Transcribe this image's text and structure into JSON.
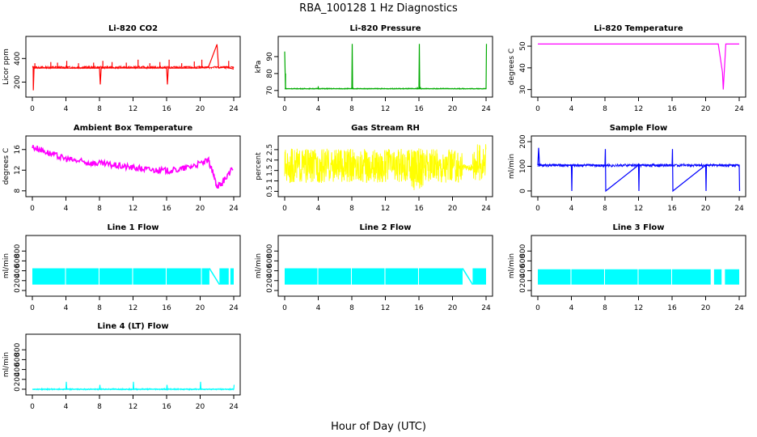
{
  "figure": {
    "title": "RBA_100128  1 Hz Diagnostics",
    "xlabel": "Hour of Day (UTC)"
  },
  "chart_data": [
    {
      "id": "co2",
      "type": "line",
      "title": "Li-820 CO2",
      "ylabel": "Licor ppm",
      "color": "#ff0000",
      "xlim": [
        0,
        24
      ],
      "xticks": [
        0,
        4,
        8,
        12,
        16,
        20,
        24
      ],
      "ylim": [
        100,
        560
      ],
      "yticks": [
        200,
        400
      ],
      "style": "trace",
      "x": [
        0,
        0.1,
        0.12,
        0.2,
        2,
        4,
        6,
        8,
        8.1,
        8.2,
        10,
        12,
        14,
        16,
        16.1,
        16.2,
        18,
        20,
        21,
        22,
        22.2,
        23,
        24
      ],
      "y": [
        330,
        330,
        130,
        320,
        320,
        318,
        318,
        320,
        180,
        320,
        320,
        320,
        320,
        320,
        180,
        320,
        318,
        320,
        330,
        520,
        320,
        330,
        310
      ],
      "band": {
        "x": [
          0,
          24
        ],
        "lo": 315,
        "hi": 335
      },
      "spikes": [
        {
          "x": 0.3,
          "y": 360
        },
        {
          "x": 2.2,
          "y": 370
        },
        {
          "x": 3.0,
          "y": 365
        },
        {
          "x": 4.1,
          "y": 380
        },
        {
          "x": 5.5,
          "y": 360
        },
        {
          "x": 7.3,
          "y": 365
        },
        {
          "x": 8.4,
          "y": 380
        },
        {
          "x": 9.5,
          "y": 370
        },
        {
          "x": 11.2,
          "y": 365
        },
        {
          "x": 12.6,
          "y": 390
        },
        {
          "x": 14.0,
          "y": 360
        },
        {
          "x": 15.2,
          "y": 370
        },
        {
          "x": 16.3,
          "y": 390
        },
        {
          "x": 17.8,
          "y": 360
        },
        {
          "x": 19.3,
          "y": 375
        },
        {
          "x": 20.2,
          "y": 390
        },
        {
          "x": 23.4,
          "y": 380
        }
      ]
    },
    {
      "id": "pressure",
      "type": "line",
      "title": "Li-820 Pressure",
      "ylabel": "kPa",
      "color": "#00aa00",
      "xlim": [
        0,
        24
      ],
      "xticks": [
        0,
        4,
        8,
        12,
        16,
        20,
        24
      ],
      "ylim": [
        68,
        100
      ],
      "yticks": [
        70,
        80,
        90
      ],
      "style": "trace",
      "x": [
        0,
        0.05,
        0.1,
        0.2,
        4,
        8,
        8.05,
        8.1,
        12,
        16,
        16.05,
        16.1,
        20,
        24,
        24.05
      ],
      "y": [
        93,
        82,
        71.5,
        71,
        71,
        71,
        97.5,
        71,
        71,
        71,
        97.5,
        71,
        71,
        71,
        97.5
      ],
      "band": {
        "x": [
          0,
          24
        ],
        "lo": 70.8,
        "hi": 71.4
      },
      "spikes": [
        {
          "x": 0.1,
          "y": 80
        },
        {
          "x": 4.0,
          "y": 72.5
        },
        {
          "x": 15.8,
          "y": 72
        },
        {
          "x": 16.2,
          "y": 72
        }
      ]
    },
    {
      "id": "licor_temp",
      "type": "line",
      "title": "Li-820 Temperature",
      "ylabel": "degrees C",
      "color": "#ff00ff",
      "xlim": [
        0,
        24
      ],
      "xticks": [
        0,
        4,
        8,
        12,
        16,
        20,
        24
      ],
      "ylim": [
        28,
        53
      ],
      "yticks": [
        30,
        40,
        50
      ],
      "style": "trace",
      "x": [
        0,
        4,
        8,
        12,
        16,
        21.5,
        22.0,
        22.1,
        22.3,
        22.4,
        23,
        24
      ],
      "y": [
        51,
        51,
        51,
        51,
        51,
        51,
        38,
        30,
        44,
        51,
        51,
        51
      ],
      "band": null,
      "spikes": []
    },
    {
      "id": "ambient_temp",
      "type": "line",
      "title": "Ambient Box Temperature",
      "ylabel": "degrees C",
      "color": "#ff00ff",
      "xlim": [
        0,
        24
      ],
      "xticks": [
        0,
        4,
        8,
        12,
        16,
        20,
        24
      ],
      "ylim": [
        7.5,
        18
      ],
      "yticks": [
        8,
        12,
        16
      ],
      "style": "thickband",
      "x": [
        0,
        1,
        2,
        3,
        4,
        5,
        6,
        7,
        8,
        9,
        10,
        11,
        12,
        13,
        14,
        15,
        16,
        17,
        18,
        19,
        20,
        21,
        21.5,
        22,
        22.5,
        23,
        24
      ],
      "y": [
        16.5,
        16.0,
        15.3,
        14.7,
        14.2,
        13.9,
        13.6,
        13.4,
        13.3,
        13.1,
        12.9,
        12.7,
        12.5,
        12.3,
        12.1,
        12.0,
        11.9,
        12.0,
        12.3,
        12.8,
        13.3,
        13.8,
        11.5,
        9.0,
        9.2,
        10.5,
        12.5
      ],
      "halfwidth": 0.6,
      "band": null,
      "spikes": []
    },
    {
      "id": "rh",
      "type": "line",
      "title": "Gas Stream RH",
      "ylabel": "percent",
      "color": "#ffff00",
      "xlim": [
        0,
        24
      ],
      "xticks": [
        0,
        4,
        8,
        12,
        16,
        20,
        24
      ],
      "ylim": [
        0.4,
        3.0
      ],
      "yticks": [
        0.5,
        1.0,
        1.5,
        2.0,
        2.5
      ],
      "style": "noiseband",
      "band": {
        "x": [
          0,
          24
        ],
        "lo": 0.9,
        "hi": 2.55
      },
      "segments": [
        {
          "x0": 0,
          "x1": 21.2,
          "lo": 0.9,
          "hi": 2.55
        },
        {
          "x0": 15.0,
          "x1": 16.5,
          "lo": 0.55,
          "hi": 2.6
        },
        {
          "x0": 21.2,
          "x1": 22.4,
          "lo": 1.5,
          "hi": 1.8
        },
        {
          "x0": 22.4,
          "x1": 24,
          "lo": 1.0,
          "hi": 2.9
        }
      ],
      "spikes": []
    },
    {
      "id": "sample_flow",
      "type": "line",
      "title": "Sample Flow",
      "ylabel": "ml/min",
      "color": "#0000ff",
      "xlim": [
        0,
        24
      ],
      "xticks": [
        0,
        4,
        8,
        12,
        16,
        20,
        24
      ],
      "ylim": [
        -10,
        210
      ],
      "yticks": [
        0,
        100,
        200
      ],
      "style": "trace",
      "x": [
        0,
        0.1,
        0.2,
        4,
        4.05,
        4.1,
        8,
        8.05,
        8.1,
        12,
        12.05,
        12.1,
        16,
        16.05,
        16.1,
        20,
        20.05,
        20.1,
        24,
        24.05
      ],
      "y": [
        105,
        175,
        105,
        105,
        0,
        105,
        105,
        170,
        0,
        105,
        0,
        105,
        105,
        170,
        0,
        105,
        0,
        105,
        105,
        0
      ],
      "band": {
        "x": [
          0,
          24
        ],
        "lo": 98,
        "hi": 110
      },
      "spikes": []
    },
    {
      "id": "line1",
      "type": "line",
      "title": "Line 1 Flow",
      "ylabel": "ml/min",
      "color": "#00ffff",
      "xlim": [
        0,
        24
      ],
      "xticks": [
        0,
        4,
        8,
        12,
        16,
        20,
        24
      ],
      "ylim": [
        -50,
        1050
      ],
      "yticks": [
        0,
        200,
        400,
        600,
        800
      ],
      "style": "gappedband",
      "band": {
        "lo": 120,
        "hi": 450
      },
      "gaps": [
        3.9,
        4.0,
        7.9,
        8.0,
        11.9,
        12.0,
        15.9,
        16.0,
        20.1,
        21.1,
        23.5
      ],
      "segments": [
        {
          "x0": 0,
          "x1": 3.9
        },
        {
          "x0": 4.0,
          "x1": 7.9
        },
        {
          "x0": 8.0,
          "x1": 11.9
        },
        {
          "x0": 12.0,
          "x1": 15.9
        },
        {
          "x0": 16.0,
          "x1": 20.1
        },
        {
          "x0": 20.2,
          "x1": 21.1
        },
        {
          "x0": 22.3,
          "x1": 23.4
        },
        {
          "x0": 23.6,
          "x1": 24
        }
      ],
      "spikes": []
    },
    {
      "id": "line2",
      "type": "line",
      "title": "Line 2 Flow",
      "ylabel": "ml/min",
      "color": "#00ffff",
      "xlim": [
        0,
        24
      ],
      "xticks": [
        0,
        4,
        8,
        12,
        16,
        20,
        24
      ],
      "ylim": [
        -50,
        1050
      ],
      "yticks": [
        0,
        200,
        400,
        600,
        800
      ],
      "style": "gappedband",
      "band": {
        "lo": 120,
        "hi": 450
      },
      "gaps": [],
      "segments": [
        {
          "x0": 0,
          "x1": 3.9
        },
        {
          "x0": 4.0,
          "x1": 7.9
        },
        {
          "x0": 8.0,
          "x1": 11.9
        },
        {
          "x0": 12.0,
          "x1": 15.9
        },
        {
          "x0": 16.0,
          "x1": 21.2
        },
        {
          "x0": 22.4,
          "x1": 24
        }
      ],
      "spikes": []
    },
    {
      "id": "line3",
      "type": "line",
      "title": "Line 3 Flow",
      "ylabel": "ml/min",
      "color": "#00ffff",
      "xlim": [
        0,
        24
      ],
      "xticks": [
        0,
        4,
        8,
        12,
        16,
        20,
        24
      ],
      "ylim": [
        -50,
        1050
      ],
      "yticks": [
        0,
        200,
        400,
        600,
        800
      ],
      "style": "gappedband",
      "band": {
        "lo": 120,
        "hi": 430
      },
      "gaps": [],
      "segments": [
        {
          "x0": 0,
          "x1": 3.9
        },
        {
          "x0": 4.0,
          "x1": 7.9
        },
        {
          "x0": 8.0,
          "x1": 11.9
        },
        {
          "x0": 12.0,
          "x1": 15.9
        },
        {
          "x0": 16.0,
          "x1": 20.6
        },
        {
          "x0": 21.0,
          "x1": 21.9
        },
        {
          "x0": 22.3,
          "x1": 24
        }
      ],
      "spikes": []
    },
    {
      "id": "line4",
      "type": "line",
      "title": "Line 4 (LT) Flow",
      "ylabel": "ml/min",
      "color": "#00ffff",
      "xlim": [
        0,
        24
      ],
      "xticks": [
        0,
        4,
        8,
        12,
        16,
        20,
        24
      ],
      "ylim": [
        -50,
        1050
      ],
      "yticks": [
        0,
        200,
        400,
        600,
        800
      ],
      "style": "trace",
      "x": [
        0,
        4,
        4.05,
        4.1,
        8,
        8.05,
        8.1,
        12,
        12.05,
        12.1,
        16,
        16.05,
        16.1,
        20,
        20.05,
        20.1,
        24,
        24.05
      ],
      "y": [
        0,
        0,
        150,
        0,
        0,
        90,
        0,
        0,
        150,
        0,
        0,
        90,
        0,
        0,
        150,
        0,
        0,
        90
      ],
      "band": {
        "x": [
          0,
          24
        ],
        "lo": -15,
        "hi": 15
      },
      "spikes": []
    }
  ]
}
